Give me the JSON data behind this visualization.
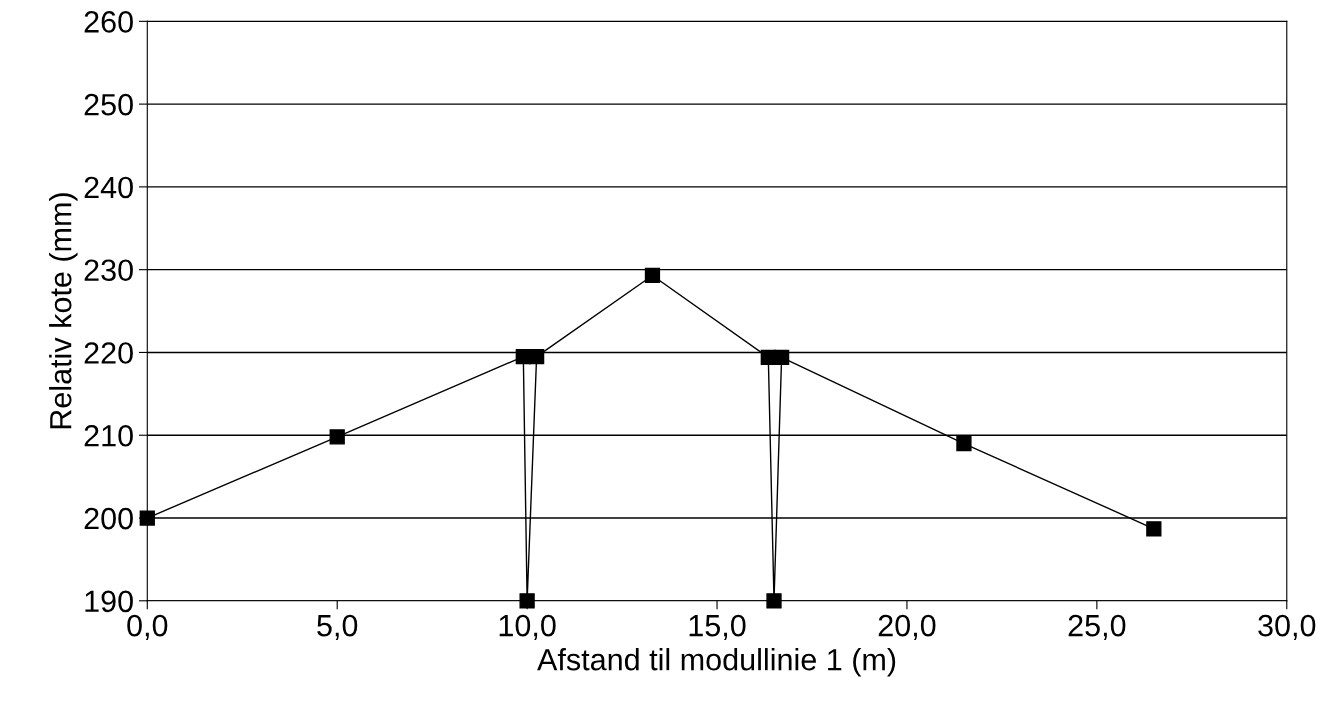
{
  "chart_data": {
    "type": "line",
    "xlabel": "Afstand til modullinie 1 (m)",
    "ylabel": "Relativ kote (mm)",
    "series": [
      {
        "color": "#000000",
        "x": [
          0.0,
          5.0,
          9.9,
          10.0,
          10.25,
          13.3,
          16.35,
          16.5,
          16.7,
          21.5,
          26.5
        ],
        "values": [
          200,
          209.8,
          219.5,
          190,
          219.5,
          229.3,
          219.4,
          190,
          219.4,
          209.0,
          198.7
        ]
      }
    ],
    "xlim": [
      0,
      30
    ],
    "ylim": [
      190,
      260
    ],
    "xticks": [
      {
        "value": 0,
        "label": "0,0"
      },
      {
        "value": 5,
        "label": "5,0"
      },
      {
        "value": 10,
        "label": "10,0"
      },
      {
        "value": 15,
        "label": "15,0"
      },
      {
        "value": 20,
        "label": "20,0"
      },
      {
        "value": 25,
        "label": "25,0"
      },
      {
        "value": 30,
        "label": "30,0"
      }
    ],
    "yticks": [
      190,
      200,
      210,
      220,
      230,
      240,
      250,
      260
    ],
    "grid": "y",
    "marker": "square",
    "line_style": "solid"
  }
}
